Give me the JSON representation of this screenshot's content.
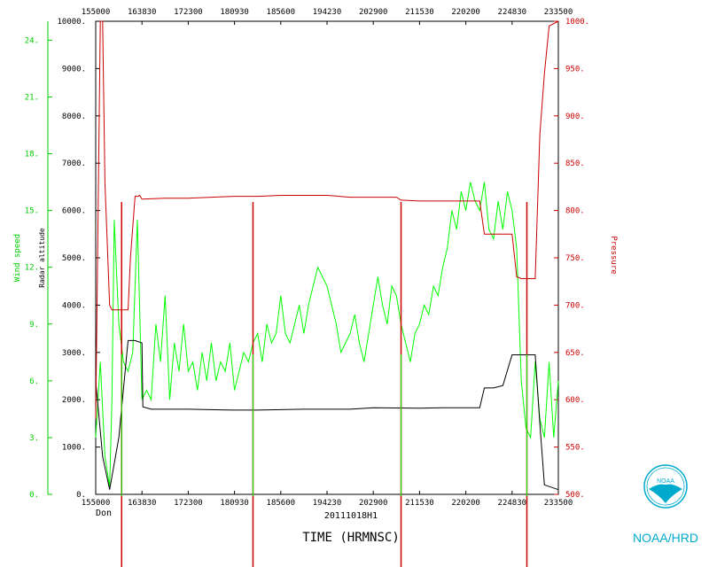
{
  "chart_data": {
    "type": "line",
    "xlabel": "TIME (HRMNSC)",
    "x_ticks_bottom": [
      "155000",
      "163830",
      "172300",
      "180930",
      "185600",
      "194230",
      "202900",
      "211530",
      "220200",
      "224830",
      "233500"
    ],
    "x_ticks_top": [
      "155000",
      "163830",
      "172300",
      "180930",
      "185600",
      "194230",
      "202900",
      "211530",
      "220200",
      "224830",
      "233500"
    ],
    "flight_label": "Don",
    "date_label": "20111018H1",
    "axes": {
      "wind": {
        "label": "Wind speed",
        "ticks": [
          "24.",
          "21.",
          "18.",
          "15.",
          "12.",
          "9.",
          "6.",
          "3.",
          "0."
        ],
        "ylim": [
          0,
          25
        ],
        "color": "#00cc00"
      },
      "radar": {
        "label": "Radar altitude",
        "ticks": [
          "10000.",
          "9000.",
          "8000.",
          "7000.",
          "6000.",
          "5000.",
          "4000.",
          "3000.",
          "2000.",
          "1000.",
          "0."
        ],
        "ylim": [
          0,
          10000
        ],
        "color": "#000000"
      },
      "pressure": {
        "label": "Pressure",
        "ticks": [
          "1000.",
          "950.",
          "900.",
          "850.",
          "800.",
          "750.",
          "700.",
          "650.",
          "600.",
          "550.",
          "500."
        ],
        "ylim": [
          500,
          1000
        ],
        "color": "#cc0000"
      }
    },
    "series": [
      {
        "name": "Wind speed",
        "color": "#00ff00",
        "x": [
          0,
          0.01,
          0.02,
          0.03,
          0.035,
          0.04,
          0.05,
          0.06,
          0.07,
          0.08,
          0.09,
          0.1,
          0.11,
          0.12,
          0.13,
          0.14,
          0.15,
          0.16,
          0.17,
          0.18,
          0.19,
          0.2,
          0.21,
          0.22,
          0.23,
          0.24,
          0.25,
          0.26,
          0.27,
          0.28,
          0.29,
          0.3,
          0.31,
          0.32,
          0.33,
          0.34,
          0.35,
          0.36,
          0.37,
          0.38,
          0.39,
          0.4,
          0.41,
          0.42,
          0.43,
          0.44,
          0.45,
          0.46,
          0.47,
          0.48,
          0.49,
          0.5,
          0.51,
          0.52,
          0.53,
          0.54,
          0.55,
          0.56,
          0.57,
          0.58,
          0.59,
          0.6,
          0.61,
          0.62,
          0.63,
          0.64,
          0.65,
          0.66,
          0.67,
          0.68,
          0.69,
          0.7,
          0.71,
          0.72,
          0.73,
          0.74,
          0.75,
          0.76,
          0.77,
          0.78,
          0.79,
          0.8,
          0.81,
          0.82,
          0.83,
          0.84,
          0.85,
          0.86,
          0.87,
          0.88,
          0.89,
          0.9,
          0.91,
          0.92,
          0.93,
          0.94,
          0.95,
          0.96,
          0.97,
          0.98,
          0.99,
          1.0
        ],
        "values": [
          3,
          7,
          2,
          0.4,
          5,
          14.5,
          9,
          7,
          6.5,
          7.5,
          14.5,
          5,
          5.5,
          5,
          9,
          7,
          10.5,
          5,
          8,
          6.5,
          9,
          6.5,
          7,
          5.5,
          7.5,
          6,
          8,
          6,
          7,
          6.5,
          8,
          5.5,
          6.5,
          7.5,
          7,
          8,
          8.5,
          7,
          9,
          8,
          8.5,
          10.5,
          8.5,
          8,
          9,
          10,
          8.5,
          10,
          11,
          12,
          11.5,
          11,
          10,
          9,
          7.5,
          8,
          8.5,
          9.5,
          8,
          7,
          8.5,
          10,
          11.5,
          10,
          9,
          11,
          10.5,
          9,
          8,
          7,
          8.5,
          9,
          10,
          9.5,
          11,
          10.5,
          12,
          13,
          15,
          14,
          16,
          15,
          16.5,
          15.5,
          15,
          16.5,
          14,
          13.5,
          15.5,
          14,
          16,
          15,
          13,
          6,
          3.5,
          3,
          7,
          4,
          3,
          7,
          3,
          6
        ]
      },
      {
        "name": "Radar altitude",
        "color": "#000000",
        "x": [
          0,
          0.015,
          0.03,
          0.05,
          0.07,
          0.085,
          0.1,
          0.102,
          0.12,
          0.2,
          0.3,
          0.35,
          0.45,
          0.55,
          0.6,
          0.7,
          0.75,
          0.78,
          0.8,
          0.83,
          0.84,
          0.86,
          0.88,
          0.9,
          0.92,
          0.95,
          0.96,
          0.97,
          1.0
        ],
        "values": [
          2400,
          800,
          100,
          1200,
          3250,
          3250,
          3200,
          1850,
          1800,
          1800,
          1780,
          1780,
          1800,
          1800,
          1830,
          1820,
          1830,
          1830,
          1830,
          1830,
          2250,
          2250,
          2300,
          2950,
          2950,
          2950,
          1500,
          200,
          100
        ]
      },
      {
        "name": "Pressure",
        "color": "#cc0000",
        "x": [
          0,
          0.01,
          0.015,
          0.02,
          0.03,
          0.035,
          0.045,
          0.06,
          0.07,
          0.075,
          0.085,
          0.092,
          0.095,
          0.1,
          0.15,
          0.2,
          0.25,
          0.3,
          0.35,
          0.4,
          0.45,
          0.5,
          0.55,
          0.6,
          0.65,
          0.66,
          0.7,
          0.75,
          0.8,
          0.83,
          0.84,
          0.85,
          0.9,
          0.91,
          0.92,
          0.95,
          0.96,
          0.97,
          0.98,
          1.0
        ],
        "values": [
          580,
          1000,
          1000,
          830,
          700,
          695,
          695,
          695,
          695,
          750,
          815,
          815,
          816,
          812,
          813,
          813,
          814,
          815,
          815,
          816,
          816,
          816,
          814,
          814,
          814,
          811,
          810,
          810,
          810,
          810,
          775,
          775,
          775,
          730,
          728,
          728,
          880,
          945,
          995,
          1000
        ]
      }
    ],
    "event_lines_x": [
      0.056,
      0.34,
      0.66,
      0.932
    ],
    "logo": {
      "text": "NOAA",
      "caption": "NOAA/HRD",
      "color": "#00aacc"
    }
  }
}
